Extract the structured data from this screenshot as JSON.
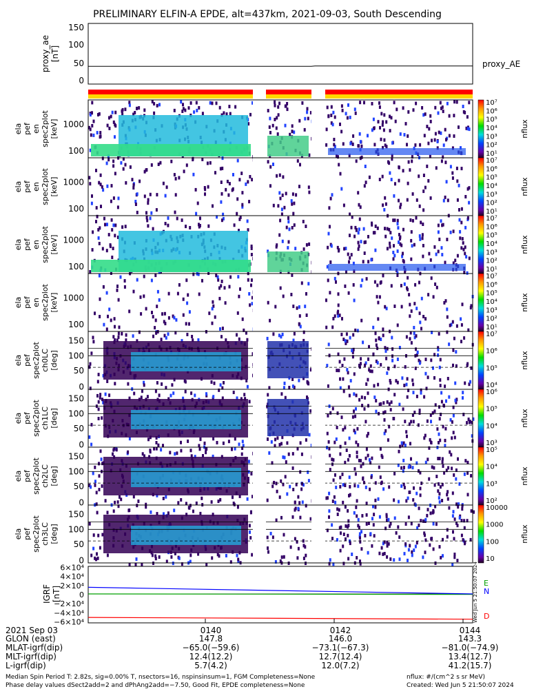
{
  "title": "PRELIMINARY ELFIN-A EPDE, alt=437km, 2021-09-03, South Descending",
  "colors": {
    "orbit_bar_red": "#ff0000",
    "orbit_bar_yellow": "#ffd700",
    "trace_black": "#000000",
    "trace_blue": "#0000ff",
    "trace_green": "#00a000",
    "trace_red": "#ff0000"
  },
  "chart_data": [
    {
      "type": "line",
      "panel": "proxy_ae",
      "ylabel": [
        "proxy_ae",
        "[nT]"
      ],
      "yticks": [
        "150",
        "100",
        "50",
        "0"
      ],
      "ylim": [
        -12,
        155
      ],
      "series": [
        {
          "name": "proxy_AE",
          "x": [
            0,
            0.58,
            0.59,
            1
          ],
          "y": [
            37,
            37,
            38,
            38
          ]
        }
      ]
    },
    {
      "type": "heatmap",
      "panel": "energy spectrogram 1",
      "ylabel": [
        "ela",
        "pef",
        "en",
        "spec2plot",
        "[keV]"
      ],
      "yticks": [
        "1000",
        "100"
      ],
      "cbar_ticks": [
        "10⁷",
        "10⁶",
        "10⁵",
        "10⁴",
        "10³",
        "10²",
        "10¹"
      ],
      "cbar_label": "nflux"
    },
    {
      "type": "heatmap",
      "panel": "energy spectrogram 2",
      "ylabel": [
        "ela",
        "pef",
        "en",
        "spec2plot",
        "[keV]"
      ],
      "yticks": [
        "1000",
        "100"
      ],
      "cbar_ticks": [
        "10⁷",
        "10⁶",
        "10⁵",
        "10⁴",
        "10³",
        "10²",
        "10¹"
      ],
      "cbar_label": "nflux"
    },
    {
      "type": "heatmap",
      "panel": "energy spectrogram 3",
      "ylabel": [
        "ela",
        "pef",
        "en",
        "spec2plot",
        "[keV]"
      ],
      "yticks": [
        "1000",
        "100"
      ],
      "cbar_ticks": [
        "10⁷",
        "10⁶",
        "10⁵",
        "10⁴",
        "10³",
        "10²",
        "10¹"
      ],
      "cbar_label": "nflux"
    },
    {
      "type": "heatmap",
      "panel": "energy spectrogram 4",
      "ylabel": [
        "ela",
        "pef",
        "en",
        "spec2plot",
        "[keV]"
      ],
      "yticks": [
        "1000",
        "100"
      ],
      "cbar_ticks": [
        "10⁷",
        "10⁶",
        "10⁵",
        "10⁴",
        "10³",
        "10²",
        "10¹"
      ],
      "cbar_label": "nflux"
    },
    {
      "type": "heatmap",
      "panel": "pitch angle ch0LC",
      "ylabel": [
        "ela",
        "pef",
        "spec2plot",
        "ch0LC",
        "[deg]"
      ],
      "yticks": [
        "150",
        "100",
        "50",
        "0"
      ],
      "ylim": [
        0,
        180
      ],
      "cbar_ticks": [
        "10⁷",
        "10⁶",
        "10⁵",
        "10⁴"
      ],
      "cbar_label": "nflux"
    },
    {
      "type": "heatmap",
      "panel": "pitch angle ch1LC",
      "ylabel": [
        "ela",
        "pef",
        "spec2plot",
        "ch1LC",
        "[deg]"
      ],
      "yticks": [
        "150",
        "100",
        "50",
        "0"
      ],
      "ylim": [
        0,
        180
      ],
      "cbar_ticks": [
        "10⁶",
        "10⁵",
        "10⁴",
        "10³"
      ],
      "cbar_label": "nflux"
    },
    {
      "type": "heatmap",
      "panel": "pitch angle ch2LC",
      "ylabel": [
        "ela",
        "pef",
        "spec2plot",
        "ch2LC",
        "[deg]"
      ],
      "yticks": [
        "150",
        "100",
        "50",
        "0"
      ],
      "ylim": [
        0,
        180
      ],
      "cbar_ticks": [
        "10⁵",
        "10⁴",
        "10³",
        "10²"
      ],
      "cbar_label": "nflux"
    },
    {
      "type": "heatmap",
      "panel": "pitch angle ch3LC",
      "ylabel": [
        "ela",
        "pef",
        "spec2plot",
        "ch3LC",
        "[deg]"
      ],
      "yticks": [
        "150",
        "100",
        "50",
        "0"
      ],
      "ylim": [
        0,
        180
      ],
      "cbar_ticks": [
        "10000",
        "1000",
        "100",
        "10"
      ],
      "cbar_label": "nflux"
    },
    {
      "type": "line",
      "panel": "IGRF",
      "ylabel": [
        "IGRF",
        "[nT]"
      ],
      "yticks": [
        "6×10⁴",
        "4×10⁴",
        "2×10⁴",
        "0",
        "−2×10⁴",
        "−4×10⁴",
        "−6×10⁴"
      ],
      "ylim": [
        -62000,
        62000
      ],
      "legend": [
        "E",
        "N",
        "D"
      ],
      "series": [
        {
          "name": "E",
          "x": [
            0,
            1
          ],
          "y": [
            1500,
            500
          ]
        },
        {
          "name": "N",
          "x": [
            0,
            1
          ],
          "y": [
            16000,
            1500
          ]
        },
        {
          "name": "D",
          "x": [
            0,
            1
          ],
          "y": [
            -50000,
            -54000
          ]
        }
      ],
      "side_text": "Wed Jun  5 21:50:07 2024"
    }
  ],
  "footer": {
    "row_labels": [
      "2021 Sep 03",
      "GLON (east)",
      "MLAT-igrf(dip)",
      "MLT-igrf(dip)",
      "L-igrf(dip)"
    ],
    "columns": [
      {
        "time": "0140",
        "values": [
          "147.8",
          "−65.0(−59.6)",
          "12.4(12.2)",
          "5.7(4.2)"
        ]
      },
      {
        "time": "0142",
        "values": [
          "146.0",
          "−73.1(−67.3)",
          "12.7(12.4)",
          "12.0(7.2)"
        ]
      },
      {
        "time": "0144",
        "values": [
          "143.3",
          "−81.0(−74.9)",
          "13.4(12.7)",
          "41.2(15.7)"
        ]
      }
    ],
    "note_left_1": "Median Spin Period T: 2.82s, sig=0.00% T, nsectors=16, nspinsinsum=1, FGM Completeness=None",
    "note_left_2": "Phase delay values dSect2add=2 and dPhAng2add=−7.50, Good Fit, EPDE completeness=None",
    "note_right_1": "nflux: #/(cm^2 s sr MeV)",
    "note_right_2": "Created: Wed Jun  5 21:50:07 2024"
  }
}
